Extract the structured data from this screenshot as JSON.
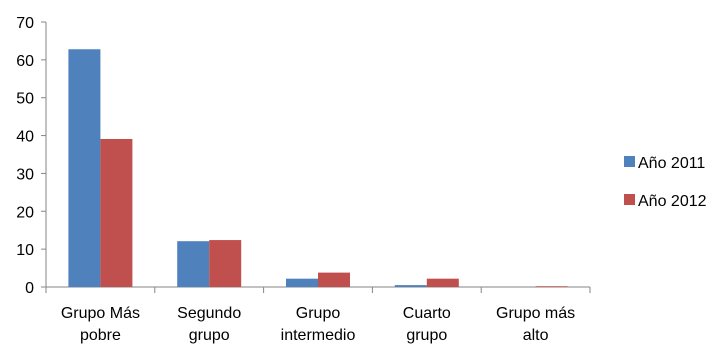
{
  "chart_data": {
    "type": "bar",
    "categories": [
      [
        "Grupo Más",
        "pobre"
      ],
      [
        "Segundo",
        "grupo"
      ],
      [
        "Grupo",
        "intermedio"
      ],
      [
        "Cuarto",
        "grupo"
      ],
      [
        "Grupo más",
        "alto"
      ]
    ],
    "series": [
      {
        "name": "Año 2011",
        "color": "#4f81bd",
        "values": [
          62.8,
          12.1,
          2.2,
          0.5,
          0.0
        ]
      },
      {
        "name": "Año 2012",
        "color": "#c0504d",
        "values": [
          39.1,
          12.4,
          3.8,
          2.2,
          0.2
        ]
      }
    ],
    "ylim": [
      0,
      70
    ],
    "yticks": [
      0,
      10,
      20,
      30,
      40,
      50,
      60,
      70
    ],
    "grid": false,
    "legend": "right"
  }
}
